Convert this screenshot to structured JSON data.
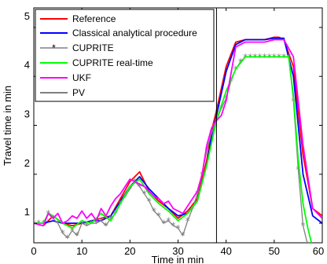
{
  "chart_data": {
    "type": "line",
    "title": "",
    "xlabel": "Time in min",
    "ylabel": "Travel time in min",
    "xlim": [
      0,
      60
    ],
    "ylim": [
      0.6,
      5.4
    ],
    "xticks": [
      0,
      10,
      20,
      30,
      40,
      50,
      60
    ],
    "yticks": [
      1,
      2,
      3,
      4,
      5
    ],
    "xtick_labels": [
      "0",
      "10",
      "20",
      "30",
      "40",
      "50",
      "60"
    ],
    "ytick_labels": [
      "1",
      "2",
      "3",
      "4",
      "5"
    ],
    "grid": false,
    "legend_position": "top-left",
    "vertical_line_x": 38,
    "series": [
      {
        "name": "Reference",
        "color": "#ff0000",
        "marker": "none",
        "x": [
          0,
          2,
          4,
          6,
          8,
          10,
          12,
          14,
          16,
          18,
          20,
          22,
          24,
          26,
          28,
          30,
          32,
          34,
          36,
          37,
          38,
          40,
          42,
          44,
          46,
          48,
          50,
          51,
          52,
          54,
          56,
          58,
          60
        ],
        "y": [
          1.0,
          0.95,
          1.15,
          1.0,
          0.95,
          1.0,
          1.05,
          1.1,
          1.15,
          1.5,
          1.85,
          2.05,
          1.65,
          1.45,
          1.3,
          1.1,
          1.25,
          1.5,
          2.3,
          2.9,
          3.3,
          4.2,
          4.7,
          4.75,
          4.75,
          4.75,
          4.8,
          4.8,
          4.75,
          4.2,
          2.4,
          1.3,
          1.15
        ]
      },
      {
        "name": "Classical analytical procedure",
        "color": "#0000ff",
        "marker": "none",
        "x": [
          0,
          2,
          4,
          6,
          8,
          10,
          12,
          14,
          16,
          18,
          20,
          22,
          24,
          26,
          28,
          30,
          32,
          34,
          36,
          37,
          38,
          40,
          42,
          44,
          46,
          48,
          50,
          51,
          52,
          54,
          56,
          58,
          60
        ],
        "y": [
          1.0,
          1.0,
          1.05,
          1.0,
          1.0,
          1.0,
          1.05,
          1.05,
          1.15,
          1.45,
          1.75,
          1.95,
          1.7,
          1.5,
          1.3,
          1.15,
          1.2,
          1.45,
          2.2,
          2.8,
          3.2,
          4.1,
          4.65,
          4.75,
          4.75,
          4.75,
          4.78,
          4.78,
          4.78,
          4.0,
          2.0,
          1.15,
          1.0
        ]
      },
      {
        "name": "CUPRITE",
        "color": "#808080",
        "marker": "star",
        "x": [
          0,
          1,
          2,
          3,
          4,
          5,
          6,
          7,
          8,
          9,
          10,
          11,
          12,
          13,
          14,
          15,
          16,
          17,
          18,
          19,
          20,
          21,
          22,
          23,
          24,
          25,
          26,
          27,
          28,
          29,
          30,
          31,
          32,
          33,
          34,
          35,
          36,
          37,
          38,
          39,
          40,
          41,
          42,
          43,
          44,
          45,
          46,
          47,
          48,
          49,
          50,
          51,
          52,
          53,
          54,
          55,
          56,
          57,
          58,
          59,
          60
        ],
        "y": [
          1.0,
          1.0,
          1.0,
          1.2,
          1.1,
          1.0,
          0.8,
          0.7,
          0.85,
          0.75,
          1.0,
          0.95,
          1.0,
          1.0,
          1.05,
          0.95,
          1.1,
          1.2,
          1.4,
          1.55,
          1.7,
          1.85,
          1.75,
          1.6,
          1.45,
          1.25,
          1.15,
          1.0,
          1.05,
          0.95,
          0.9,
          0.75,
          1.05,
          1.3,
          1.6,
          2.0,
          2.5,
          2.85,
          3.1,
          3.35,
          3.55,
          3.9,
          4.15,
          4.3,
          4.4,
          4.4,
          4.4,
          4.4,
          4.4,
          4.4,
          4.4,
          4.4,
          4.4,
          4.4,
          3.5,
          2.1,
          0.95,
          0.55,
          0.5,
          0.5,
          0.55
        ]
      },
      {
        "name": "CUPRITE real-time",
        "color": "#00ff00",
        "marker": "none",
        "x": [
          0,
          2,
          3,
          4,
          6,
          8,
          10,
          12,
          14,
          16,
          18,
          20,
          22,
          24,
          26,
          28,
          30,
          32,
          34,
          36,
          38,
          40,
          42,
          44,
          46,
          48,
          50,
          52,
          53,
          54,
          55,
          56,
          57,
          58
        ],
        "y": [
          1.0,
          1.0,
          1.2,
          1.15,
          1.0,
          0.9,
          1.05,
          1.0,
          1.2,
          1.05,
          1.4,
          1.75,
          1.9,
          1.6,
          1.4,
          1.25,
          1.05,
          1.2,
          1.45,
          2.2,
          3.1,
          3.7,
          4.15,
          4.4,
          4.4,
          4.4,
          4.4,
          4.4,
          4.4,
          3.6,
          2.3,
          1.4,
          0.9,
          0.5
        ]
      },
      {
        "name": "UKF",
        "color": "#ff00ff",
        "marker": "none",
        "x": [
          0,
          2,
          3,
          4,
          5,
          6,
          7,
          8,
          9,
          10,
          11,
          12,
          13,
          14,
          15,
          16,
          17,
          18,
          19,
          20,
          21,
          22,
          23,
          24,
          25,
          26,
          27,
          28,
          29,
          30,
          31,
          32,
          33,
          34,
          35,
          36,
          37,
          38,
          39,
          40,
          42,
          44,
          46,
          48,
          50,
          52,
          54,
          56,
          58,
          60
        ],
        "y": [
          1.0,
          0.95,
          1.2,
          1.1,
          1.2,
          1.0,
          1.05,
          1.15,
          1.1,
          1.25,
          1.1,
          1.2,
          1.05,
          1.3,
          1.15,
          1.35,
          1.5,
          1.6,
          1.75,
          1.9,
          1.85,
          1.8,
          1.75,
          1.65,
          1.55,
          1.5,
          1.4,
          1.45,
          1.3,
          1.25,
          1.2,
          1.35,
          1.5,
          1.65,
          2.0,
          2.6,
          2.95,
          3.1,
          3.2,
          3.5,
          4.6,
          4.7,
          4.7,
          4.7,
          4.75,
          4.75,
          4.4,
          2.6,
          1.3,
          1.1
        ]
      }
    ]
  },
  "legend": {
    "entries": [
      {
        "label": "Reference",
        "color": "#ff0000",
        "marker": "none"
      },
      {
        "label": "Classical analytical procedure",
        "color": "#0000ff",
        "marker": "none"
      },
      {
        "label": "CUPRITE",
        "color": "#808080",
        "marker": "star"
      },
      {
        "label": "CUPRITE real-time",
        "color": "#00ff00",
        "marker": "none"
      },
      {
        "label": "UKF",
        "color": "#ff00ff",
        "marker": "none"
      },
      {
        "label": "PV",
        "color": "#000000",
        "marker": "none"
      }
    ]
  }
}
